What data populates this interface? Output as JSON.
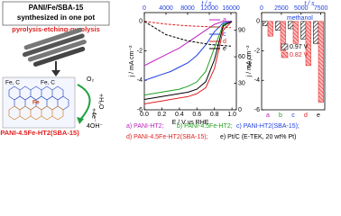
{
  "scheme": {
    "title_lines": [
      "PANI/Fe/SBA-15",
      "synthesized in one pot"
    ],
    "process": "pyrolysis-etching-pyrolysis",
    "site_labels": [
      "Fe, C",
      "Fe, C"
    ],
    "atom_label": "Fe",
    "product": "PANI-4.5Fe-HT2(SBA-15)",
    "reaction": [
      "O₂",
      "+H₂O",
      "+4e⁻",
      "4OH⁻"
    ]
  },
  "chart_data": [
    {
      "type": "line",
      "xlabel": "E / V vs RHE",
      "ylabel": "j / mA cm⁻²",
      "y2label": "i / %",
      "x2label": "t / s",
      "xlim": [
        0,
        1.05
      ],
      "xticks": [
        {
          "value": 0,
          "label": "0.0"
        },
        0.2,
        0.4,
        0.6,
        0.8,
        {
          "value": 1,
          "label": "1.0"
        }
      ],
      "x2lim": [
        0,
        17000
      ],
      "x2ticks": [
        0,
        4000,
        8000,
        12000,
        16000
      ],
      "ylim": [
        -6,
        0.6
      ],
      "yticks": [
        0,
        -2,
        -4,
        -6
      ],
      "y2lim": [
        0,
        110
      ],
      "y2ticks": [
        0,
        30,
        60,
        90
      ],
      "series": [
        {
          "name": "a",
          "color": "#c020c0",
          "x": [
            0,
            0.1,
            0.2,
            0.3,
            0.4,
            0.5,
            0.6,
            0.7,
            0.8,
            0.9,
            1.0
          ],
          "values": [
            -3.0,
            -2.7,
            -2.4,
            -2.1,
            -1.8,
            -1.4,
            -1.0,
            -0.6,
            -0.2,
            0,
            0
          ]
        },
        {
          "name": "b",
          "color": "#20a020",
          "x": [
            0,
            0.1,
            0.2,
            0.3,
            0.4,
            0.5,
            0.6,
            0.7,
            0.8,
            0.9,
            1.0
          ],
          "values": [
            -5.0,
            -4.9,
            -4.8,
            -4.7,
            -4.6,
            -4.4,
            -4.1,
            -3.4,
            -1.8,
            -0.2,
            0
          ]
        },
        {
          "name": "c",
          "color": "#2040e0",
          "x": [
            0,
            0.1,
            0.2,
            0.3,
            0.4,
            0.5,
            0.6,
            0.7,
            0.8,
            0.9,
            1.0
          ],
          "values": [
            -4.0,
            -3.8,
            -3.6,
            -3.4,
            -3.1,
            -2.8,
            -2.3,
            -1.6,
            -0.7,
            -0.1,
            0
          ]
        },
        {
          "name": "d",
          "color": "#e02020",
          "x": [
            0,
            0.1,
            0.2,
            0.3,
            0.4,
            0.5,
            0.6,
            0.7,
            0.8,
            0.9,
            1.0
          ],
          "values": [
            -5.6,
            -5.5,
            -5.4,
            -5.3,
            -5.2,
            -5.1,
            -4.9,
            -4.5,
            -3.2,
            -0.6,
            0
          ]
        },
        {
          "name": "e",
          "color": "#000000",
          "x": [
            0,
            0.1,
            0.2,
            0.3,
            0.4,
            0.5,
            0.6,
            0.7,
            0.8,
            0.9,
            1.0
          ],
          "values": [
            -5.3,
            -5.2,
            -5.1,
            -5.0,
            -4.9,
            -4.8,
            -4.6,
            -4.1,
            -2.6,
            -0.3,
            0
          ]
        },
        {
          "color": "#e02020",
          "axis": "y2",
          "xaxis": "x2",
          "x": [
            0,
            4000,
            8000,
            12000,
            16000
          ],
          "values": [
            100,
            97,
            95,
            94,
            93
          ]
        },
        {
          "color": "#000000",
          "axis": "y2",
          "xaxis": "x2",
          "x": [
            0,
            4000,
            8000,
            12000,
            16000
          ],
          "values": [
            100,
            85,
            78,
            74,
            72
          ]
        }
      ]
    },
    {
      "type": "bar",
      "ylabel": "j / mA cm⁻²",
      "x2label": "t / s",
      "annotation": "methanol",
      "categories": [
        "a",
        "b",
        "c",
        "d",
        "e"
      ],
      "x2lim": [
        0,
        8000
      ],
      "x2ticks": [
        0,
        2500,
        5000,
        7500
      ],
      "ylim": [
        -6,
        0.6
      ],
      "yticks": [
        0,
        -2,
        -4,
        -6
      ],
      "series": [
        {
          "name": "0.97 V",
          "color": "#000000",
          "values": [
            -0.3,
            -0.6,
            -0.5,
            -1.2,
            -1.5
          ]
        },
        {
          "name": "0.82 V",
          "color": "#e02020",
          "values": [
            -1.0,
            -2.0,
            -1.5,
            -3.0,
            -5.5
          ]
        }
      ]
    }
  ],
  "captions": [
    {
      "text": "a) PANI-HT2;",
      "color": "#c020c0"
    },
    {
      "text": "b) PANI-4.5Fe-HT2;",
      "color": "#20a020"
    },
    {
      "text": "c) PANI-HT2(SBA-15);",
      "color": "#2040e0"
    },
    {
      "text": "d) PANI-4.5Fe-HT2(SBA-15);",
      "color": "#e02020"
    },
    {
      "text": "e) Pt/C (E-TEK, 20 wt% Pt)",
      "color": "#000000"
    }
  ]
}
